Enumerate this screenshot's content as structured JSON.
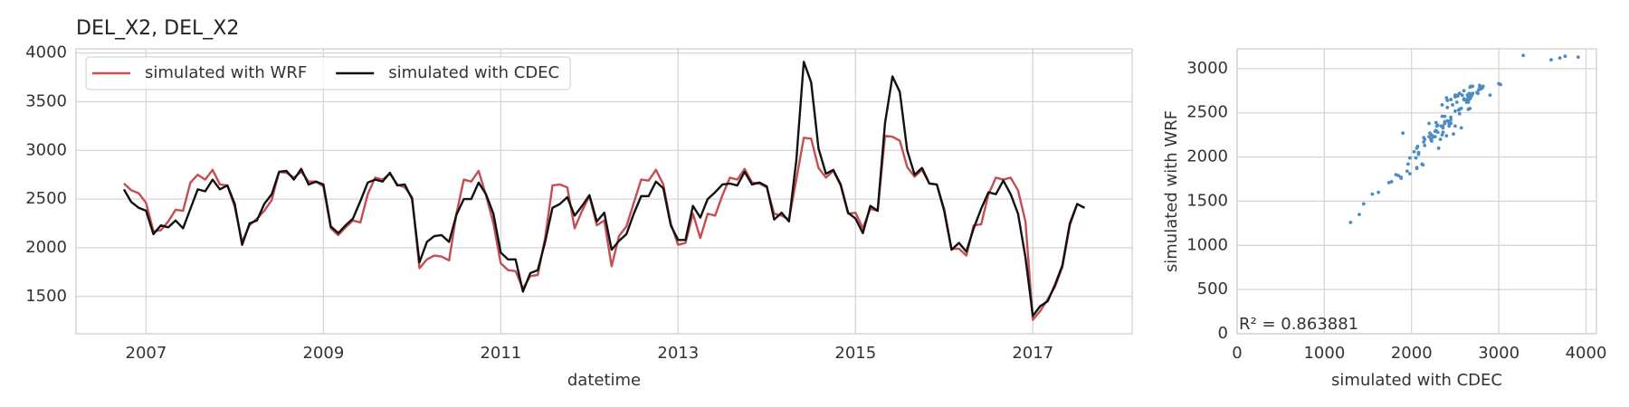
{
  "chart_data": [
    {
      "type": "line",
      "title": "DEL_X2, DEL_X2",
      "xlabel": "datetime",
      "x": [
        2006.75,
        2006.833,
        2006.917,
        2007.0,
        2007.083,
        2007.167,
        2007.25,
        2007.333,
        2007.417,
        2007.5,
        2007.583,
        2007.667,
        2007.75,
        2007.833,
        2007.917,
        2008.0,
        2008.083,
        2008.167,
        2008.25,
        2008.333,
        2008.417,
        2008.5,
        2008.583,
        2008.667,
        2008.75,
        2008.833,
        2008.917,
        2009.0,
        2009.083,
        2009.167,
        2009.25,
        2009.333,
        2009.417,
        2009.5,
        2009.583,
        2009.667,
        2009.75,
        2009.833,
        2009.917,
        2010.0,
        2010.083,
        2010.167,
        2010.25,
        2010.333,
        2010.417,
        2010.5,
        2010.583,
        2010.667,
        2010.75,
        2010.833,
        2010.917,
        2011.0,
        2011.083,
        2011.167,
        2011.25,
        2011.333,
        2011.417,
        2011.5,
        2011.583,
        2011.667,
        2011.75,
        2011.833,
        2011.917,
        2012.0,
        2012.083,
        2012.167,
        2012.25,
        2012.333,
        2012.417,
        2012.5,
        2012.583,
        2012.667,
        2012.75,
        2012.833,
        2012.917,
        2013.0,
        2013.083,
        2013.167,
        2013.25,
        2013.333,
        2013.417,
        2013.5,
        2013.583,
        2013.667,
        2013.75,
        2013.833,
        2013.917,
        2014.0,
        2014.083,
        2014.167,
        2014.25,
        2014.333,
        2014.417,
        2014.5,
        2014.583,
        2014.667,
        2014.75,
        2014.833,
        2014.917,
        2015.0,
        2015.083,
        2015.167,
        2015.25,
        2015.333,
        2015.417,
        2015.5,
        2015.583,
        2015.667,
        2015.75,
        2015.833,
        2015.917,
        2016.0,
        2016.083,
        2016.167,
        2016.25,
        2016.333,
        2016.417,
        2016.5,
        2016.583,
        2016.667,
        2016.75,
        2016.833,
        2016.917,
        2017.0,
        2017.083,
        2017.167,
        2017.25,
        2017.333,
        2017.417,
        2017.5,
        2017.583
      ],
      "series": [
        {
          "name": "simulated with WRF",
          "color": "#c44e52",
          "values": [
            2660,
            2590,
            2560,
            2460,
            2170,
            2180,
            2270,
            2390,
            2380,
            2670,
            2750,
            2700,
            2800,
            2650,
            2640,
            2420,
            2060,
            2230,
            2300,
            2380,
            2490,
            2780,
            2770,
            2720,
            2780,
            2680,
            2680,
            2630,
            2200,
            2130,
            2210,
            2280,
            2260,
            2550,
            2720,
            2700,
            2760,
            2650,
            2620,
            2520,
            1790,
            1880,
            1920,
            1910,
            1870,
            2350,
            2700,
            2680,
            2790,
            2540,
            2250,
            1840,
            1770,
            1760,
            1580,
            1710,
            1720,
            2100,
            2640,
            2650,
            2620,
            2200,
            2380,
            2530,
            2230,
            2280,
            1810,
            2120,
            2220,
            2460,
            2700,
            2690,
            2800,
            2650,
            2250,
            2030,
            2050,
            2350,
            2100,
            2350,
            2330,
            2540,
            2720,
            2700,
            2810,
            2670,
            2660,
            2620,
            2350,
            2330,
            2290,
            2700,
            3130,
            3120,
            2820,
            2720,
            2790,
            2640,
            2350,
            2360,
            2200,
            2400,
            2380,
            3150,
            3140,
            3100,
            2830,
            2730,
            2800,
            2660,
            2650,
            2400,
            1990,
            1990,
            1920,
            2230,
            2240,
            2550,
            2720,
            2700,
            2720,
            2590,
            2270,
            1260,
            1350,
            1470,
            1600,
            1800,
            2230,
            2450,
            2410
          ]
        },
        {
          "name": "simulated with CDEC",
          "color": "#111111",
          "values": [
            2600,
            2470,
            2410,
            2380,
            2140,
            2230,
            2210,
            2280,
            2200,
            2400,
            2600,
            2580,
            2700,
            2600,
            2640,
            2450,
            2030,
            2250,
            2280,
            2450,
            2550,
            2780,
            2790,
            2700,
            2810,
            2650,
            2680,
            2650,
            2220,
            2150,
            2230,
            2300,
            2480,
            2670,
            2700,
            2680,
            2770,
            2640,
            2650,
            2500,
            1850,
            2060,
            2120,
            2130,
            2060,
            2340,
            2500,
            2500,
            2670,
            2550,
            2350,
            1950,
            1880,
            1880,
            1550,
            1740,
            1770,
            2060,
            2410,
            2450,
            2520,
            2330,
            2430,
            2540,
            2270,
            2360,
            1980,
            2070,
            2140,
            2350,
            2530,
            2530,
            2680,
            2610,
            2230,
            2080,
            2080,
            2430,
            2310,
            2500,
            2570,
            2650,
            2660,
            2640,
            2780,
            2650,
            2670,
            2630,
            2290,
            2360,
            2270,
            2900,
            3910,
            3700,
            3020,
            2760,
            2800,
            2650,
            2360,
            2300,
            2150,
            2430,
            2380,
            3280,
            3760,
            3600,
            3000,
            2750,
            2820,
            2660,
            2650,
            2380,
            1980,
            2050,
            1960,
            2200,
            2400,
            2570,
            2550,
            2690,
            2550,
            2350,
            1900,
            1300,
            1400,
            1450,
            1620,
            1820,
            2250,
            2450,
            2410
          ]
        }
      ],
      "xlim": [
        2006.21,
        2018.12
      ],
      "xticks": [
        2007,
        2009,
        2011,
        2013,
        2015,
        2017
      ],
      "ylim": [
        1117,
        4043
      ],
      "yticks": [
        1500,
        2000,
        2500,
        3000,
        3500,
        4000
      ],
      "grid": true,
      "legend": "upper left"
    },
    {
      "type": "scatter",
      "xlabel": "simulated with CDEC",
      "ylabel": "simulated with WRF",
      "color": "#4c8bc4",
      "annotation": "R² = 0.863881",
      "xlim": [
        0,
        4119
      ],
      "xticks": [
        0,
        1000,
        2000,
        3000,
        4000
      ],
      "ylim": [
        0,
        3224
      ],
      "yticks": [
        0,
        500,
        1000,
        1500,
        2000,
        2500,
        3000
      ],
      "grid": true
    }
  ]
}
